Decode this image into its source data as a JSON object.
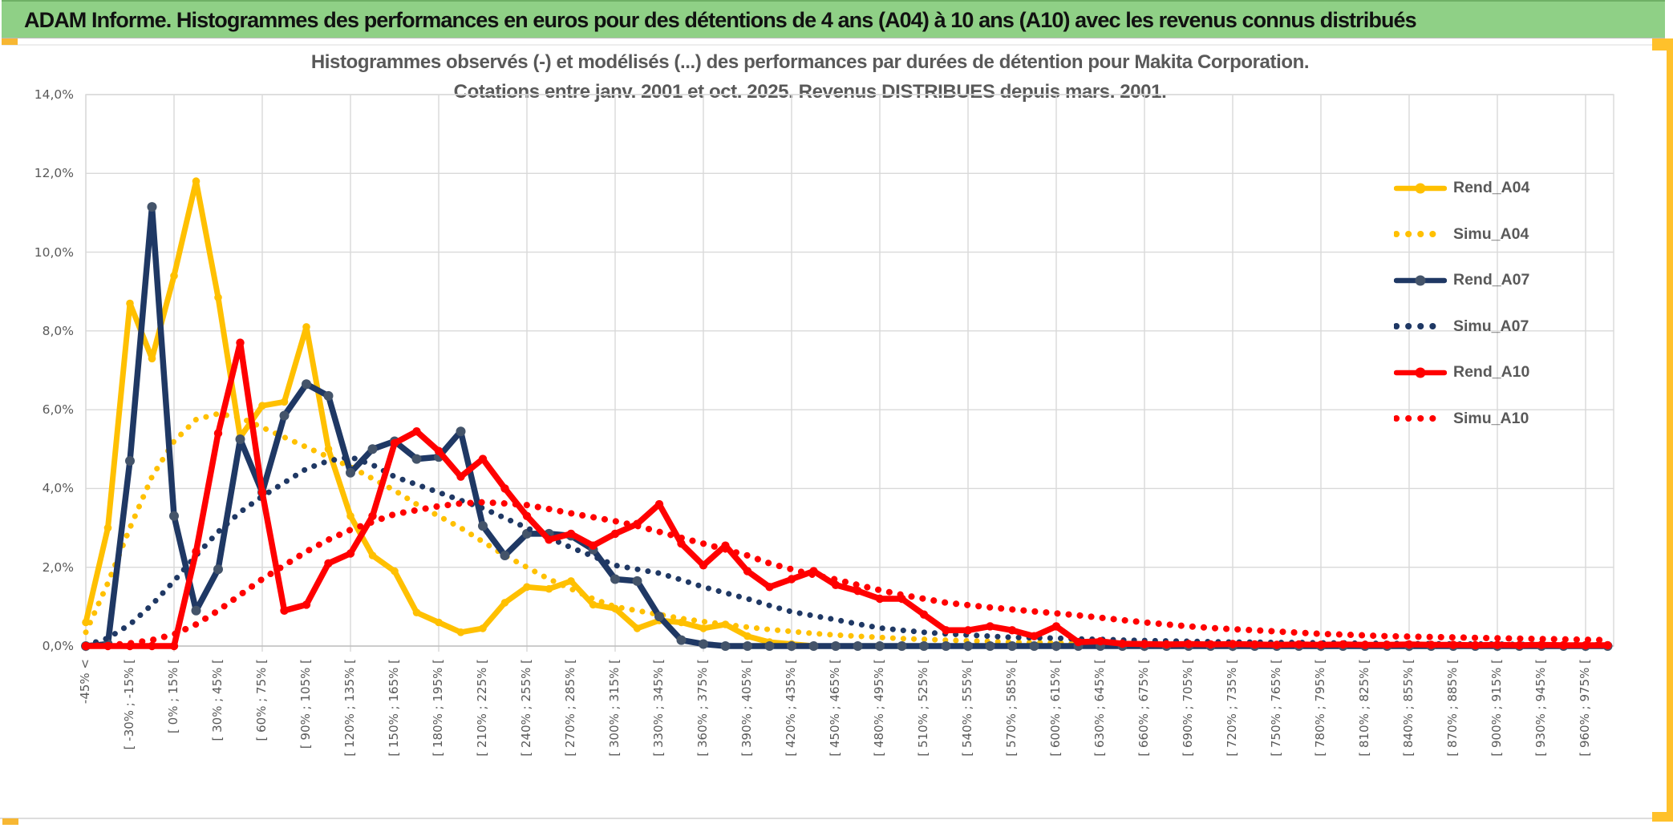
{
  "page": {
    "header_title": "ADAM Informe. Histogrammes des performances en euros pour des détentions de 4 ans (A04) à 10 ans (A10) avec les revenus connus distribués"
  },
  "chart_data": {
    "type": "line",
    "title_line1": "Histogrammes observés (-) et modélisés (...) des performances par durées de détention pour Makita Corporation.",
    "title_line2": "Cotations entre janv. 2001 et oct. 2025. Revenus DISTRIBUES depuis mars. 2001.",
    "grid": true,
    "legend_position": "right",
    "ylim": [
      0,
      14
    ],
    "y_tick_step_pct": 2,
    "y_tick_labels": [
      "0,0%",
      "2,0%",
      "4,0%",
      "6,0%",
      "8,0%",
      "10,0%",
      "12,0%",
      "14,0%"
    ],
    "bins_count": 70,
    "bin_width_pct": 15,
    "x_tick_every_bins": 2,
    "x_tick_labels": [
      "-45% <",
      "[ -30% ; -15% [",
      "[ 0% ; 15% [",
      "[ 30% ; 45% [",
      "[ 60% ; 75% [",
      "[ 90% ; 105% [",
      "[ 120% ; 135% [",
      "[ 150% ; 165% [",
      "[ 180% ; 195% [",
      "[ 210% ; 225% [",
      "[ 240% ; 255% [",
      "[ 270% ; 285% [",
      "[ 300% ; 315% [",
      "[ 330% ; 345% [",
      "[ 360% ; 375% [",
      "[ 390% ; 405% [",
      "[ 420% ; 435% [",
      "[ 450% ; 465% [",
      "[ 480% ; 495% [",
      "[ 510% ; 525% [",
      "[ 540% ; 555% [",
      "[ 570% ; 585% [",
      "[ 600% ; 615% [",
      "[ 630% ; 645% [",
      "[ 660% ; 675% [",
      "[ 690% ; 705% [",
      "[ 720% ; 735% [",
      "[ 750% ; 765% [",
      "[ 780% ; 795% [",
      "[ 810% ; 825% [",
      "[ 840% ; 855% [",
      "[ 870% ; 885% [",
      "[ 900% ; 915% [",
      "[ 930% ; 945% [",
      "[ 960% ; 975% ["
    ],
    "colors": {
      "A04": "#FFC000",
      "A07": "#1F3864",
      "A07_marker": "#44546A",
      "A10": "#FF0000",
      "gridline": "#D9D9D9",
      "axis_line": "#BFBFBF",
      "text_gray": "#595959"
    },
    "series": [
      {
        "name": "Rend_A04",
        "color": "#FFC000",
        "marker_color": "#FFC000",
        "style": "solid",
        "width": 7,
        "marker_r": 4.8,
        "values": [
          0.6,
          3.0,
          8.7,
          7.3,
          9.4,
          11.8,
          8.85,
          5.3,
          6.1,
          6.2,
          8.1,
          5.0,
          3.3,
          2.3,
          1.9,
          0.85,
          0.6,
          0.35,
          0.45,
          1.1,
          1.5,
          1.45,
          1.65,
          1.05,
          0.95,
          0.45,
          0.65,
          0.6,
          0.45,
          0.55,
          0.25,
          0.1,
          0.05,
          0,
          0,
          0,
          0,
          0,
          0,
          0,
          0,
          0,
          0,
          0,
          0,
          0,
          0,
          0,
          0,
          0,
          0,
          0,
          0,
          0,
          0,
          0,
          0,
          0,
          0,
          0,
          0,
          0,
          0,
          0,
          0,
          0,
          0,
          0,
          0,
          0
        ]
      },
      {
        "name": "Simu_A04",
        "color": "#FFC000",
        "style": "dotted",
        "width": 7,
        "values": [
          0.35,
          1.6,
          3.0,
          4.3,
          5.2,
          5.75,
          5.9,
          5.8,
          5.55,
          5.3,
          5.05,
          4.8,
          4.55,
          4.25,
          3.95,
          3.6,
          3.3,
          3.0,
          2.65,
          2.3,
          2.0,
          1.7,
          1.45,
          1.2,
          1.0,
          0.9,
          0.8,
          0.7,
          0.62,
          0.55,
          0.48,
          0.42,
          0.37,
          0.32,
          0.28,
          0.25,
          0.22,
          0.19,
          0.17,
          0.15,
          0.13,
          0.12,
          0.1,
          0.09,
          0.08,
          0.07,
          0.07,
          0.06,
          0.05,
          0.05,
          0.04,
          0.04,
          0.04,
          0.03,
          0.03,
          0.03,
          0.02,
          0.02,
          0.02,
          0.02,
          0.02,
          0.02,
          0.01,
          0.01,
          0.01,
          0.01,
          0.01,
          0.01,
          0.01,
          0.01
        ]
      },
      {
        "name": "Rend_A07",
        "color": "#1F3864",
        "marker_color": "#44546A",
        "style": "solid",
        "width": 7.5,
        "marker_r": 6,
        "values": [
          0,
          0.05,
          4.7,
          11.15,
          3.3,
          0.9,
          1.95,
          5.25,
          3.9,
          5.85,
          6.65,
          6.35,
          4.4,
          5.0,
          5.2,
          4.75,
          4.8,
          5.45,
          3.05,
          2.3,
          2.85,
          2.85,
          2.8,
          2.45,
          1.7,
          1.65,
          0.75,
          0.15,
          0.05,
          0,
          0,
          0,
          0,
          0,
          0,
          0,
          0,
          0,
          0,
          0,
          0,
          0,
          0,
          0,
          0,
          0,
          0,
          0,
          0,
          0,
          0,
          0,
          0,
          0,
          0,
          0,
          0,
          0,
          0,
          0,
          0,
          0,
          0,
          0,
          0,
          0,
          0,
          0,
          0,
          0
        ]
      },
      {
        "name": "Simu_A07",
        "color": "#1F3864",
        "style": "dotted",
        "width": 7,
        "values": [
          0.02,
          0.2,
          0.55,
          1.05,
          1.65,
          2.3,
          2.9,
          3.4,
          3.8,
          4.15,
          4.5,
          4.7,
          4.8,
          4.6,
          4.3,
          4.1,
          3.9,
          3.7,
          3.5,
          3.25,
          3.0,
          2.75,
          2.5,
          2.28,
          2.05,
          1.95,
          1.85,
          1.68,
          1.5,
          1.35,
          1.2,
          1.03,
          0.87,
          0.77,
          0.67,
          0.56,
          0.46,
          0.4,
          0.35,
          0.31,
          0.28,
          0.25,
          0.22,
          0.21,
          0.2,
          0.18,
          0.17,
          0.15,
          0.14,
          0.13,
          0.12,
          0.11,
          0.1,
          0.1,
          0.09,
          0.09,
          0.08,
          0.08,
          0.07,
          0.07,
          0.06,
          0.06,
          0.05,
          0.05,
          0.05,
          0.04,
          0.04,
          0.04,
          0.03,
          0.03
        ]
      },
      {
        "name": "Rend_A10",
        "color": "#FF0000",
        "marker_color": "#FF0000",
        "style": "solid",
        "width": 7.5,
        "marker_r": 5.2,
        "values": [
          0,
          0,
          0,
          0,
          0,
          2.4,
          5.4,
          7.7,
          3.9,
          0.9,
          1.05,
          2.1,
          2.35,
          3.3,
          5.15,
          5.45,
          4.95,
          4.3,
          4.75,
          4.0,
          3.3,
          2.7,
          2.85,
          2.55,
          2.85,
          3.1,
          3.6,
          2.6,
          2.05,
          2.55,
          1.9,
          1.5,
          1.7,
          1.9,
          1.55,
          1.4,
          1.2,
          1.2,
          0.8,
          0.4,
          0.4,
          0.5,
          0.4,
          0.25,
          0.5,
          0.1,
          0.12,
          0.06,
          0.05,
          0.04,
          0.05,
          0.04,
          0.05,
          0.04,
          0.03,
          0.04,
          0.03,
          0.04,
          0.03,
          0.03,
          0.04,
          0.03,
          0.03,
          0.02,
          0.03,
          0.02,
          0.03,
          0.02,
          0.02,
          0.02
        ]
      },
      {
        "name": "Simu_A10",
        "color": "#FF0000",
        "style": "dotted",
        "width": 8,
        "values": [
          0,
          0.02,
          0.07,
          0.15,
          0.3,
          0.55,
          0.9,
          1.3,
          1.7,
          2.05,
          2.4,
          2.7,
          2.95,
          3.15,
          3.35,
          3.45,
          3.55,
          3.62,
          3.65,
          3.62,
          3.58,
          3.48,
          3.37,
          3.27,
          3.17,
          3.05,
          2.9,
          2.75,
          2.6,
          2.45,
          2.3,
          2.1,
          1.95,
          1.8,
          1.69,
          1.55,
          1.42,
          1.3,
          1.2,
          1.1,
          1.04,
          0.98,
          0.93,
          0.88,
          0.83,
          0.78,
          0.72,
          0.66,
          0.6,
          0.55,
          0.5,
          0.46,
          0.43,
          0.4,
          0.37,
          0.34,
          0.31,
          0.29,
          0.27,
          0.25,
          0.24,
          0.23,
          0.22,
          0.21,
          0.2,
          0.19,
          0.18,
          0.17,
          0.16,
          0.15
        ]
      }
    ]
  }
}
